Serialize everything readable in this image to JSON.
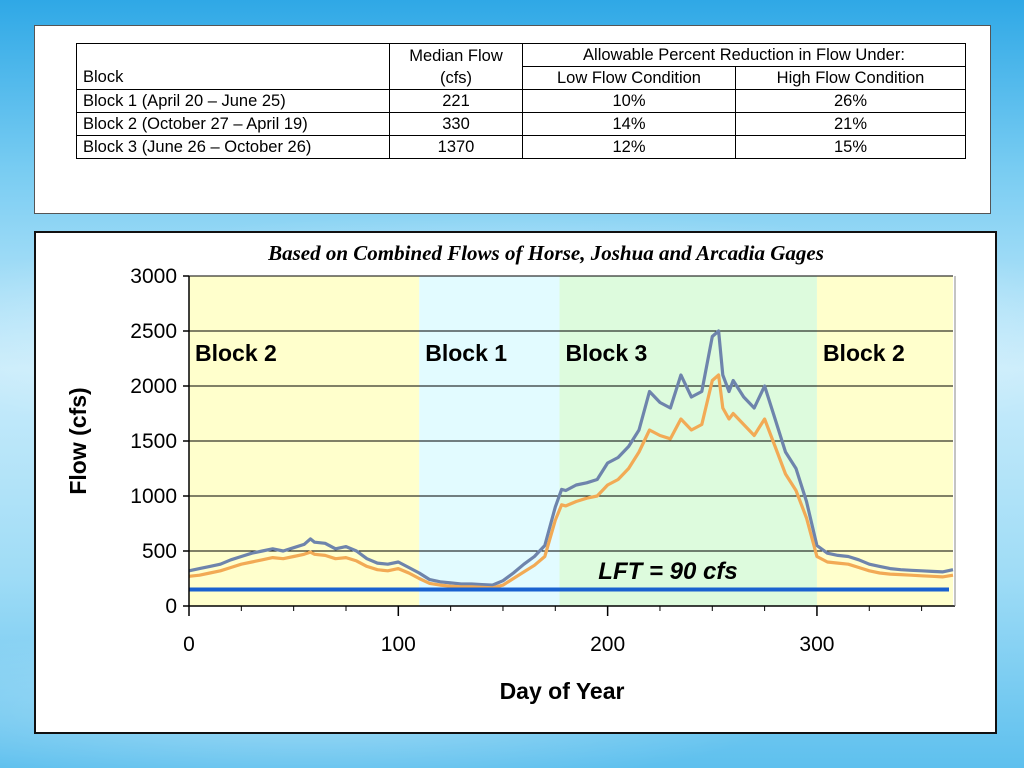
{
  "table": {
    "headers": {
      "block": "Block",
      "median_flow": [
        "Median Flow",
        "(cfs)"
      ],
      "allowable": "Allowable Percent Reduction in Flow Under:",
      "low": "Low Flow Condition",
      "high": "High Flow Condition"
    },
    "rows": [
      {
        "block": "Block 1 (April 20 – June 25)",
        "median": "221",
        "low": "10%",
        "high": "26%"
      },
      {
        "block": "Block 2 (October 27 – April 19)",
        "median": "330",
        "low": "14%",
        "high": "21%"
      },
      {
        "block": "Block 3 (June 26 – October  26)",
        "median": "1370",
        "low": "12%",
        "high": "15%"
      }
    ]
  },
  "chart_data": {
    "type": "line",
    "title": "Based on Combined Flows of Horse, Joshua and Arcadia Gages",
    "xlabel": "Day of Year",
    "ylabel": "Flow (cfs)",
    "xlim": [
      0,
      365
    ],
    "ylim": [
      0,
      3000
    ],
    "x_ticks": [
      0,
      100,
      200,
      300
    ],
    "y_ticks": [
      0,
      500,
      1000,
      1500,
      2000,
      2500,
      3000
    ],
    "grid": "horizontal",
    "regions": [
      {
        "label": "Block 2",
        "x0": 0,
        "x1": 110,
        "color": "#ffffcc"
      },
      {
        "label": "Block 1",
        "x0": 110,
        "x1": 177,
        "color": "#e2fbff"
      },
      {
        "label": "Block 3",
        "x0": 177,
        "x1": 300,
        "color": "#ddfbdd"
      },
      {
        "label": "Block 2",
        "x0": 300,
        "x1": 365,
        "color": "#ffffcc"
      }
    ],
    "series": [
      {
        "color": "#6e84ac",
        "x": [
          0,
          5,
          10,
          15,
          20,
          25,
          30,
          35,
          40,
          45,
          50,
          55,
          58,
          60,
          65,
          70,
          75,
          80,
          85,
          90,
          95,
          100,
          105,
          110,
          115,
          120,
          125,
          130,
          135,
          140,
          145,
          150,
          155,
          160,
          165,
          170,
          175,
          178,
          180,
          185,
          190,
          195,
          200,
          205,
          210,
          215,
          220,
          225,
          230,
          235,
          240,
          245,
          250,
          253,
          255,
          258,
          260,
          265,
          270,
          275,
          280,
          285,
          290,
          295,
          300,
          305,
          310,
          315,
          320,
          325,
          330,
          335,
          340,
          345,
          350,
          355,
          360,
          365
        ],
        "y": [
          320,
          340,
          360,
          380,
          420,
          450,
          480,
          500,
          520,
          500,
          530,
          560,
          610,
          580,
          570,
          520,
          540,
          500,
          430,
          390,
          380,
          400,
          350,
          300,
          240,
          220,
          210,
          200,
          200,
          195,
          190,
          230,
          300,
          380,
          450,
          550,
          900,
          1060,
          1050,
          1100,
          1120,
          1150,
          1300,
          1350,
          1450,
          1600,
          1950,
          1850,
          1800,
          2100,
          1900,
          1950,
          2450,
          2500,
          2100,
          1950,
          2050,
          1900,
          1800,
          2000,
          1700,
          1400,
          1250,
          950,
          550,
          480,
          460,
          450,
          420,
          380,
          360,
          340,
          330,
          325,
          320,
          315,
          310,
          330
        ]
      },
      {
        "color": "#f2aa55",
        "x": [
          0,
          5,
          10,
          15,
          20,
          25,
          30,
          35,
          40,
          45,
          50,
          55,
          58,
          60,
          65,
          70,
          75,
          80,
          85,
          90,
          95,
          100,
          105,
          110,
          115,
          120,
          125,
          130,
          135,
          140,
          145,
          150,
          155,
          160,
          165,
          170,
          175,
          178,
          180,
          185,
          190,
          195,
          200,
          205,
          210,
          215,
          220,
          225,
          230,
          235,
          240,
          245,
          250,
          253,
          255,
          258,
          260,
          265,
          270,
          275,
          280,
          285,
          290,
          295,
          300,
          305,
          310,
          315,
          320,
          325,
          330,
          335,
          340,
          345,
          350,
          355,
          360,
          365
        ],
        "y": [
          270,
          280,
          300,
          320,
          350,
          380,
          400,
          420,
          440,
          430,
          450,
          470,
          490,
          470,
          460,
          430,
          440,
          410,
          360,
          330,
          320,
          340,
          300,
          250,
          205,
          190,
          180,
          175,
          175,
          170,
          165,
          190,
          250,
          310,
          370,
          450,
          780,
          920,
          910,
          950,
          980,
          1000,
          1100,
          1150,
          1250,
          1400,
          1600,
          1550,
          1520,
          1700,
          1600,
          1650,
          2050,
          2100,
          1800,
          1700,
          1750,
          1650,
          1550,
          1700,
          1450,
          1200,
          1050,
          800,
          450,
          400,
          390,
          380,
          350,
          320,
          300,
          290,
          285,
          280,
          275,
          270,
          265,
          280
        ]
      }
    ],
    "reference_line": {
      "y": 150,
      "label": "LFT = 90 cfs",
      "color": "#1a62d0"
    }
  }
}
